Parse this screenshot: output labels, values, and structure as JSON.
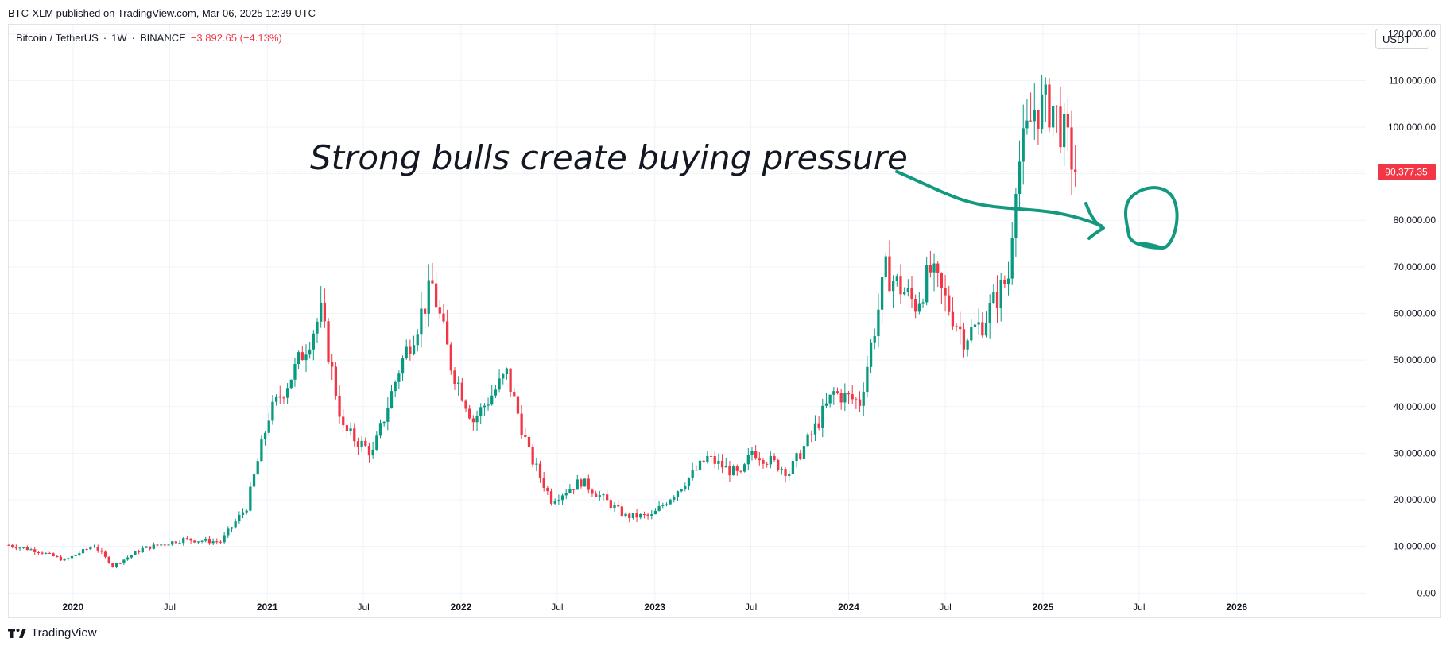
{
  "header": {
    "published": "BTC-XLM published on TradingView.com, Mar 06, 2025 12:39 UTC"
  },
  "legend": {
    "symbol": "Bitcoin / TetherUS",
    "interval": "1W",
    "exchange": "BINANCE",
    "change": "−3,892.65 (−4.13%)"
  },
  "currency_button": "USDT",
  "footer": {
    "brand": "TradingView"
  },
  "colors": {
    "up": "#089981",
    "down": "#f23645",
    "annotation": "#12997f",
    "grid": "#f0f3fa"
  },
  "chart_data": {
    "type": "candlestick",
    "title": "",
    "x_range": [
      "2019-09-02",
      "2026-09-01"
    ],
    "ylim": [
      -2000,
      122000
    ],
    "y_ticks": [
      "0.00",
      "10,000.00",
      "20,000.00",
      "30,000.00",
      "40,000.00",
      "50,000.00",
      "60,000.00",
      "70,000.00",
      "80,000.00",
      "90,000.00",
      "100,000.00",
      "110,000.00",
      "120,000.00"
    ],
    "y_tick_values": [
      0,
      10000,
      20000,
      30000,
      40000,
      50000,
      60000,
      70000,
      80000,
      90000,
      100000,
      110000,
      120000
    ],
    "x_ticks": [
      {
        "label": "2020",
        "date": "2020-01-01"
      },
      {
        "label": "Jul",
        "date": "2020-07-01"
      },
      {
        "label": "2021",
        "date": "2021-01-01"
      },
      {
        "label": "Jul",
        "date": "2021-07-01"
      },
      {
        "label": "2022",
        "date": "2022-01-01"
      },
      {
        "label": "Jul",
        "date": "2022-07-01"
      },
      {
        "label": "2023",
        "date": "2023-01-01"
      },
      {
        "label": "Jul",
        "date": "2023-07-01"
      },
      {
        "label": "2024",
        "date": "2024-01-01"
      },
      {
        "label": "Jul",
        "date": "2024-07-01"
      },
      {
        "label": "2025",
        "date": "2025-01-01"
      },
      {
        "label": "Jul",
        "date": "2025-07-01"
      },
      {
        "label": "2026",
        "date": "2026-01-01"
      }
    ],
    "current_price": 90377.35,
    "current_price_label": "90,377.35",
    "anchors": [
      {
        "date": "2019-09-02",
        "price": 10300
      },
      {
        "date": "2019-10-28",
        "price": 9000
      },
      {
        "date": "2019-12-16",
        "price": 7000
      },
      {
        "date": "2020-02-10",
        "price": 10200
      },
      {
        "date": "2020-03-16",
        "price": 5800
      },
      {
        "date": "2020-05-11",
        "price": 9500
      },
      {
        "date": "2020-07-27",
        "price": 11500
      },
      {
        "date": "2020-10-05",
        "price": 11000
      },
      {
        "date": "2020-11-23",
        "price": 18500
      },
      {
        "date": "2021-01-04",
        "price": 38000
      },
      {
        "date": "2021-02-22",
        "price": 48000
      },
      {
        "date": "2021-04-12",
        "price": 60000
      },
      {
        "date": "2021-05-24",
        "price": 35000
      },
      {
        "date": "2021-07-19",
        "price": 30000
      },
      {
        "date": "2021-09-06",
        "price": 48000
      },
      {
        "date": "2021-11-08",
        "price": 66000
      },
      {
        "date": "2021-12-13",
        "price": 49000
      },
      {
        "date": "2022-01-24",
        "price": 37000
      },
      {
        "date": "2022-03-28",
        "price": 47000
      },
      {
        "date": "2022-05-09",
        "price": 30000
      },
      {
        "date": "2022-06-20",
        "price": 20000
      },
      {
        "date": "2022-08-15",
        "price": 24000
      },
      {
        "date": "2022-11-07",
        "price": 16500
      },
      {
        "date": "2022-12-26",
        "price": 16500
      },
      {
        "date": "2023-02-20",
        "price": 23000
      },
      {
        "date": "2023-04-10",
        "price": 29000
      },
      {
        "date": "2023-06-12",
        "price": 25000
      },
      {
        "date": "2023-07-03",
        "price": 30500
      },
      {
        "date": "2023-09-11",
        "price": 26000
      },
      {
        "date": "2023-10-23",
        "price": 34000
      },
      {
        "date": "2023-12-04",
        "price": 43000
      },
      {
        "date": "2024-01-22",
        "price": 41000
      },
      {
        "date": "2024-03-11",
        "price": 69000
      },
      {
        "date": "2024-05-06",
        "price": 62000
      },
      {
        "date": "2024-06-03",
        "price": 69000
      },
      {
        "date": "2024-08-05",
        "price": 55000
      },
      {
        "date": "2024-09-09",
        "price": 58000
      },
      {
        "date": "2024-10-28",
        "price": 68000
      },
      {
        "date": "2024-11-11",
        "price": 90000
      },
      {
        "date": "2024-12-16",
        "price": 104000
      },
      {
        "date": "2025-01-20",
        "price": 104500
      },
      {
        "date": "2025-02-17",
        "price": 96000
      },
      {
        "date": "2025-03-03",
        "price": 90377
      }
    ]
  },
  "annotation": {
    "text": "Strong bulls create buying pressure"
  }
}
